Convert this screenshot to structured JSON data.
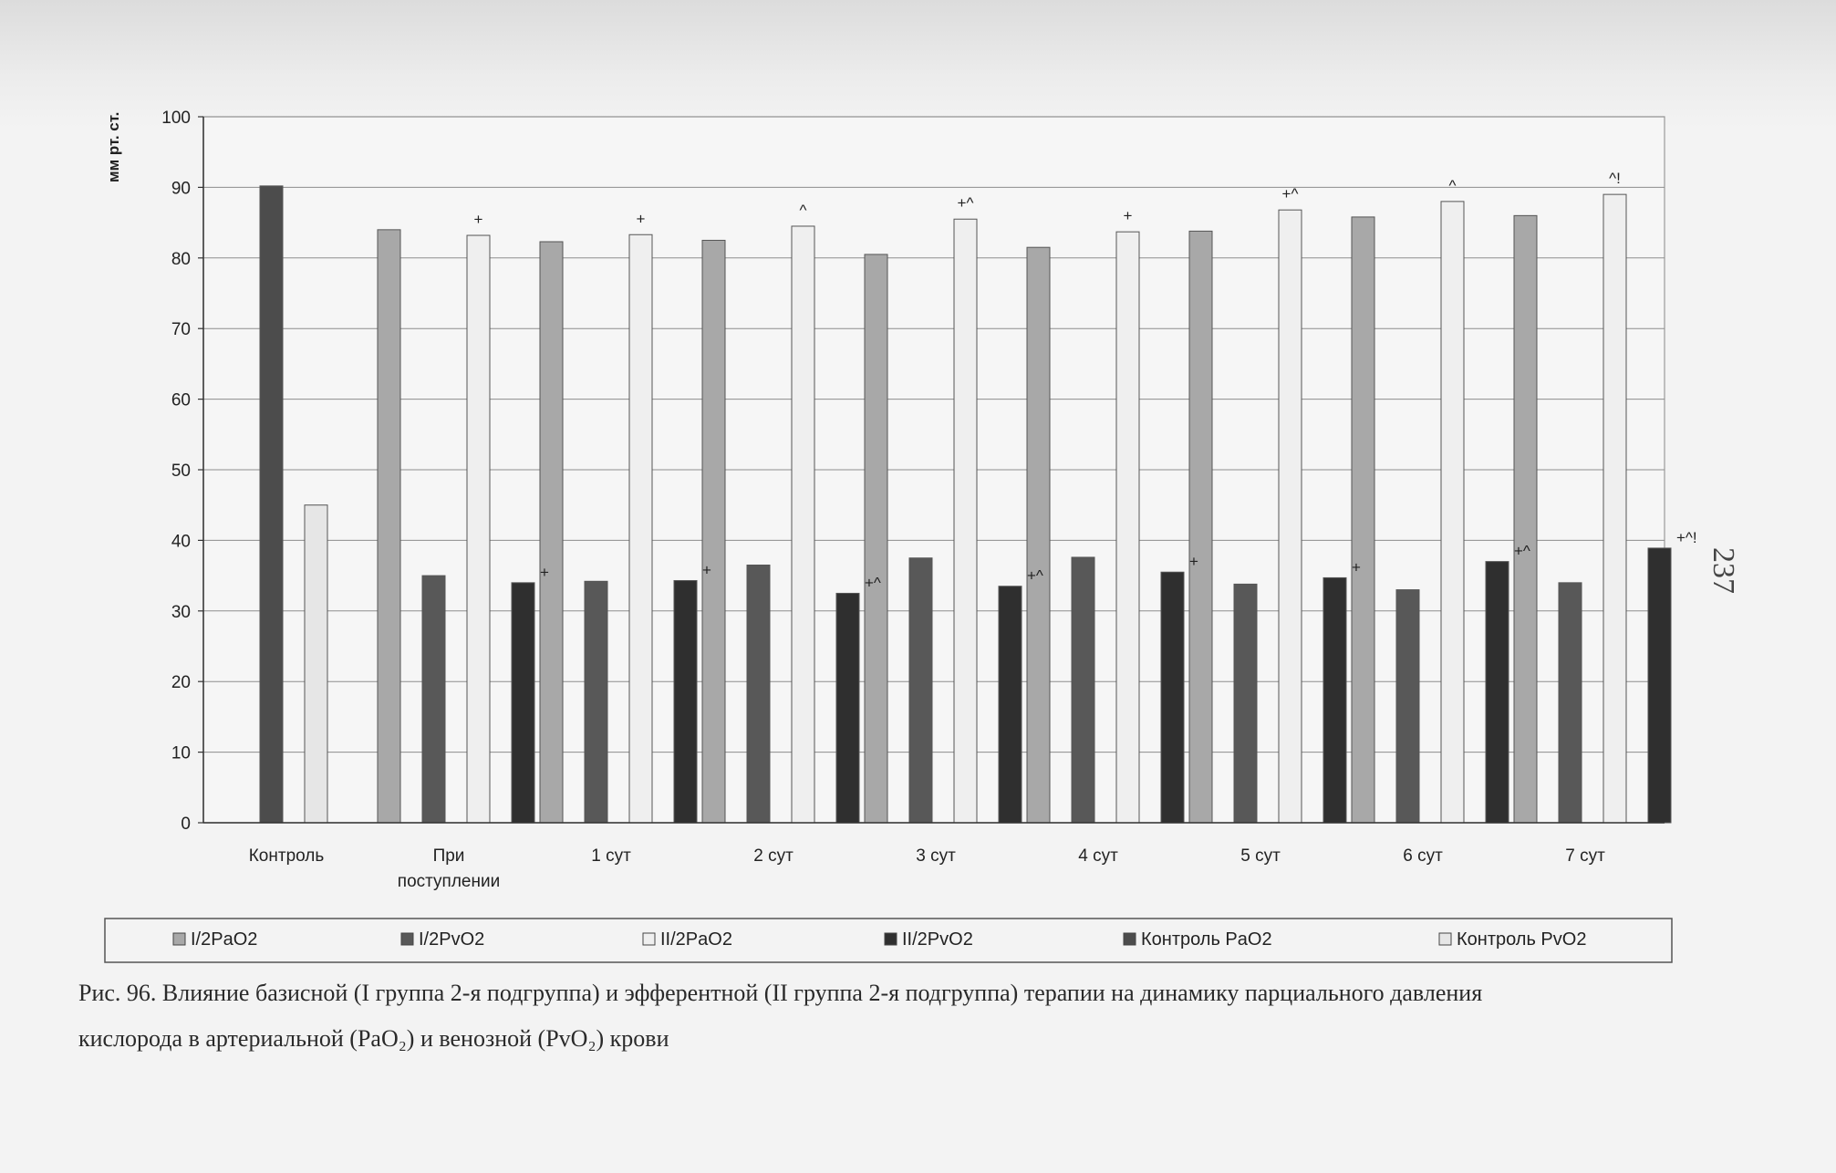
{
  "page_number": "237",
  "caption": {
    "line1": "Рис. 96. Влияние базисной (I группа 2-я подгруппа) и эфферентной (II группа 2-я подгруппа) терапии на динамику парциального давления",
    "line2": "кислорода в артериальной (PaO₂) и венозной (PvO₂) крови"
  },
  "chart_data": {
    "type": "bar",
    "ylabel": "мм рт. ст.",
    "ylim": [
      0,
      100
    ],
    "yticks": [
      0,
      10,
      20,
      30,
      40,
      50,
      60,
      70,
      80,
      90,
      100
    ],
    "grid": true,
    "legend_position": "bottom",
    "categories": [
      [
        "Контроль"
      ],
      [
        "При",
        "поступлении"
      ],
      [
        "1 сут"
      ],
      [
        "2 сут"
      ],
      [
        "3 сут"
      ],
      [
        "4 сут"
      ],
      [
        "5 сут"
      ],
      [
        "6 сут"
      ],
      [
        "7 сут"
      ]
    ],
    "series": [
      {
        "name": "I/2PaO2",
        "color": "#a8a8a8",
        "values": [
          null,
          84,
          82.3,
          82.5,
          80.5,
          81.5,
          83.8,
          85.8,
          86
        ],
        "markers": [
          null,
          null,
          null,
          null,
          null,
          null,
          null,
          null,
          null
        ]
      },
      {
        "name": "I/2PvO2",
        "color": "#585858",
        "values": [
          null,
          35,
          34.2,
          36.5,
          37.5,
          37.6,
          33.8,
          33,
          34
        ],
        "markers": [
          null,
          null,
          null,
          null,
          null,
          null,
          null,
          null,
          null
        ]
      },
      {
        "name": "II/2PaO2",
        "color": "#efefef",
        "values": [
          null,
          83.2,
          83.3,
          84.5,
          85.5,
          83.7,
          86.8,
          88,
          89
        ],
        "markers": [
          null,
          "+",
          "+",
          "^",
          "+^",
          "+",
          "+^",
          "^",
          "^!"
        ]
      },
      {
        "name": "II/2PvO2",
        "color": "#2f2f2f",
        "values": [
          null,
          34,
          34.3,
          32.5,
          33.5,
          35.5,
          34.7,
          37,
          38.9
        ],
        "markers": [
          null,
          "+",
          "+",
          "+^",
          "+^",
          "+",
          "+",
          "+^",
          "+^!"
        ]
      },
      {
        "name": "Контроль PaO2",
        "color": "#4c4c4c",
        "values": [
          90.2,
          null,
          null,
          null,
          null,
          null,
          null,
          null,
          null
        ],
        "markers": [
          null,
          null,
          null,
          null,
          null,
          null,
          null,
          null,
          null
        ]
      },
      {
        "name": "Контроль PvO2",
        "color": "#e6e6e6",
        "values": [
          45,
          null,
          null,
          null,
          null,
          null,
          null,
          null,
          null
        ],
        "markers": [
          null,
          null,
          null,
          null,
          null,
          null,
          null,
          null,
          null
        ]
      }
    ]
  }
}
